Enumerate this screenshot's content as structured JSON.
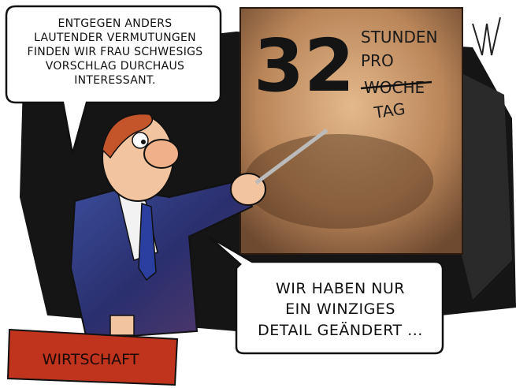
{
  "speech_bubbles": [
    {
      "lines": [
        "ENTGEGEN ANDERS",
        "LAUTENDER VERMUTUNGEN",
        "FINDEN WIR FRAU SCHWESIGS",
        "VORSCHLAG DURCHAUS",
        "INTERESSANT."
      ]
    },
    {
      "lines": [
        "WIR HABEN NUR",
        "EIN WINZIGES",
        "DETAIL GEÄNDERT ..."
      ]
    }
  ],
  "board": {
    "number": "32",
    "words": [
      "STUNDEN",
      "PRO",
      "WOCHE",
      "TAG"
    ]
  },
  "briefcase": {
    "label": "WIRTSCHAFT"
  }
}
